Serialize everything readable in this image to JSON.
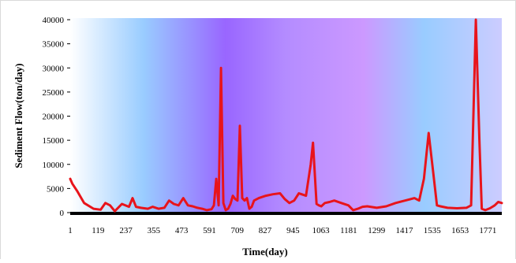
{
  "chart_data": {
    "type": "line",
    "xlabel": "Time(day)",
    "ylabel": "Sediment Flow(ton/day)",
    "xlim": [
      1,
      1830
    ],
    "ylim": [
      0,
      40000
    ],
    "y_ticks": [
      0,
      5000,
      10000,
      15000,
      20000,
      25000,
      30000,
      35000,
      40000
    ],
    "x_ticks": [
      1,
      119,
      237,
      355,
      473,
      591,
      709,
      827,
      945,
      1063,
      1181,
      1299,
      1417,
      1535,
      1653,
      1771
    ],
    "grid": false,
    "line_color": "#e8141b",
    "series": [
      {
        "x": [
          1,
          10,
          30,
          60,
          100,
          130,
          150,
          170,
          190,
          220,
          250,
          265,
          280,
          300,
          330,
          350,
          375,
          400,
          420,
          440,
          460,
          480,
          500,
          520,
          540,
          560,
          580,
          600,
          610,
          620,
          630,
          640,
          650,
          660,
          670,
          680,
          690,
          700,
          710,
          720,
          730,
          740,
          750,
          760,
          770,
          780,
          800,
          830,
          860,
          890,
          910,
          930,
          950,
          970,
          1000,
          1020,
          1030,
          1045,
          1055,
          1065,
          1080,
          1100,
          1120,
          1150,
          1180,
          1200,
          1220,
          1240,
          1260,
          1300,
          1340,
          1380,
          1420,
          1460,
          1480,
          1500,
          1520,
          1540,
          1555,
          1570,
          1600,
          1640,
          1680,
          1700,
          1720,
          1735,
          1745,
          1760,
          1780,
          1800,
          1815,
          1830
        ],
        "y": [
          7000,
          6000,
          4500,
          2000,
          800,
          600,
          2000,
          1500,
          300,
          1800,
          1200,
          3000,
          1200,
          1000,
          800,
          1200,
          800,
          1000,
          2500,
          1800,
          1500,
          3000,
          1500,
          1300,
          1000,
          800,
          500,
          700,
          1500,
          7000,
          1500,
          30000,
          2000,
          500,
          800,
          1800,
          3500,
          2800,
          2500,
          18000,
          3000,
          2500,
          3000,
          800,
          1200,
          2500,
          3000,
          3500,
          3800,
          4000,
          2800,
          2000,
          2500,
          4000,
          3500,
          10000,
          14500,
          1800,
          1500,
          1300,
          2000,
          2200,
          2500,
          2000,
          1500,
          500,
          800,
          1200,
          1300,
          1000,
          1300,
          2000,
          2500,
          3000,
          2500,
          7000,
          16500,
          8000,
          1500,
          1300,
          1000,
          900,
          1000,
          1500,
          40000,
          15000,
          800,
          500,
          900,
          1500,
          2200,
          2000
        ]
      }
    ]
  }
}
